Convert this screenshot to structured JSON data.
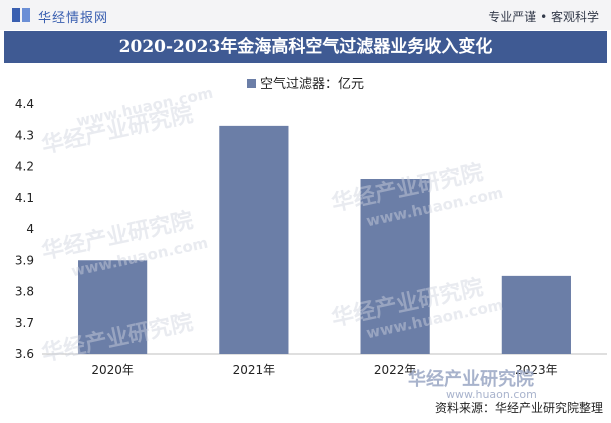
{
  "header": {
    "logo_text": "华经情报网",
    "logo_icon": "huajing-logo-icon",
    "slogan": "专业严谨 • 客观科学"
  },
  "chart_data": {
    "type": "bar",
    "title": "2020-2023年金海高科空气过滤器业务收入变化",
    "categories": [
      "2020年",
      "2021年",
      "2022年",
      "2023年"
    ],
    "series": [
      {
        "name": "空气过滤器：亿元",
        "values": [
          3.9,
          4.33,
          4.16,
          3.85
        ]
      }
    ],
    "ylim": [
      3.6,
      4.4
    ],
    "yticks": [
      "3.6",
      "3.7",
      "3.8",
      "3.9",
      "4",
      "4.1",
      "4.2",
      "4.3",
      "4.4"
    ],
    "xlabel": "",
    "ylabel": "",
    "grid": false,
    "legend_position": "top-center",
    "bar_color": "#6b7ea7"
  },
  "watermark": {
    "name": "华经产业研究院",
    "url": "www.huaon.com"
  },
  "footer": {
    "source": "资料来源：华经产业研究院整理"
  },
  "colors": {
    "title_band": "#3f5a93",
    "bar": "#6b7ea7"
  }
}
